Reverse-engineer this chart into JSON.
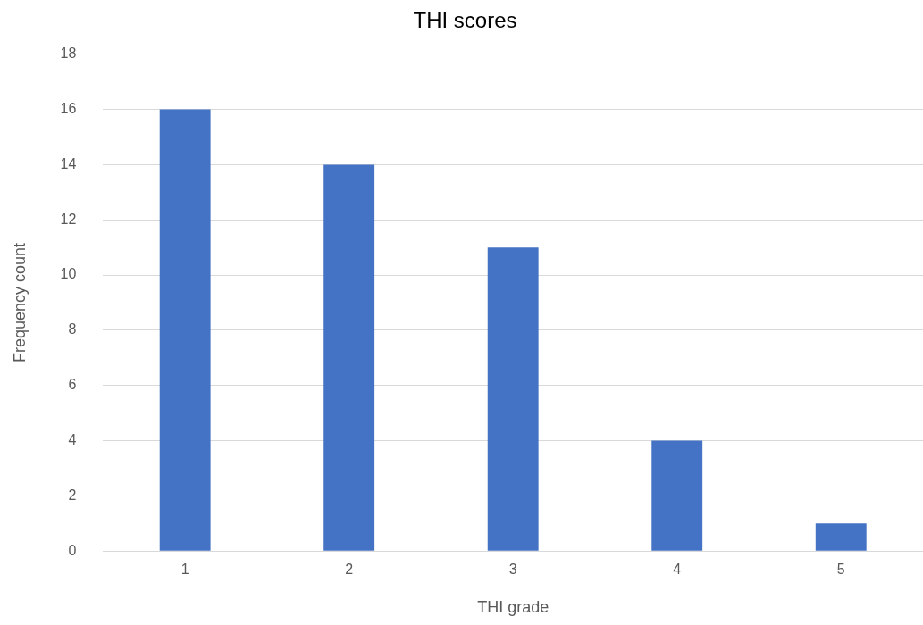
{
  "chart_data": {
    "type": "bar",
    "title": "THI scores",
    "xlabel": "THI grade",
    "ylabel": "Frequency count",
    "categories": [
      "1",
      "2",
      "3",
      "4",
      "5"
    ],
    "values": [
      16,
      14,
      11,
      4,
      1
    ],
    "color": "#4472c4",
    "ylim": [
      0,
      18
    ],
    "yticks": [
      0,
      2,
      4,
      6,
      8,
      10,
      12,
      14,
      16,
      18
    ],
    "grid": "y",
    "legend": false
  }
}
